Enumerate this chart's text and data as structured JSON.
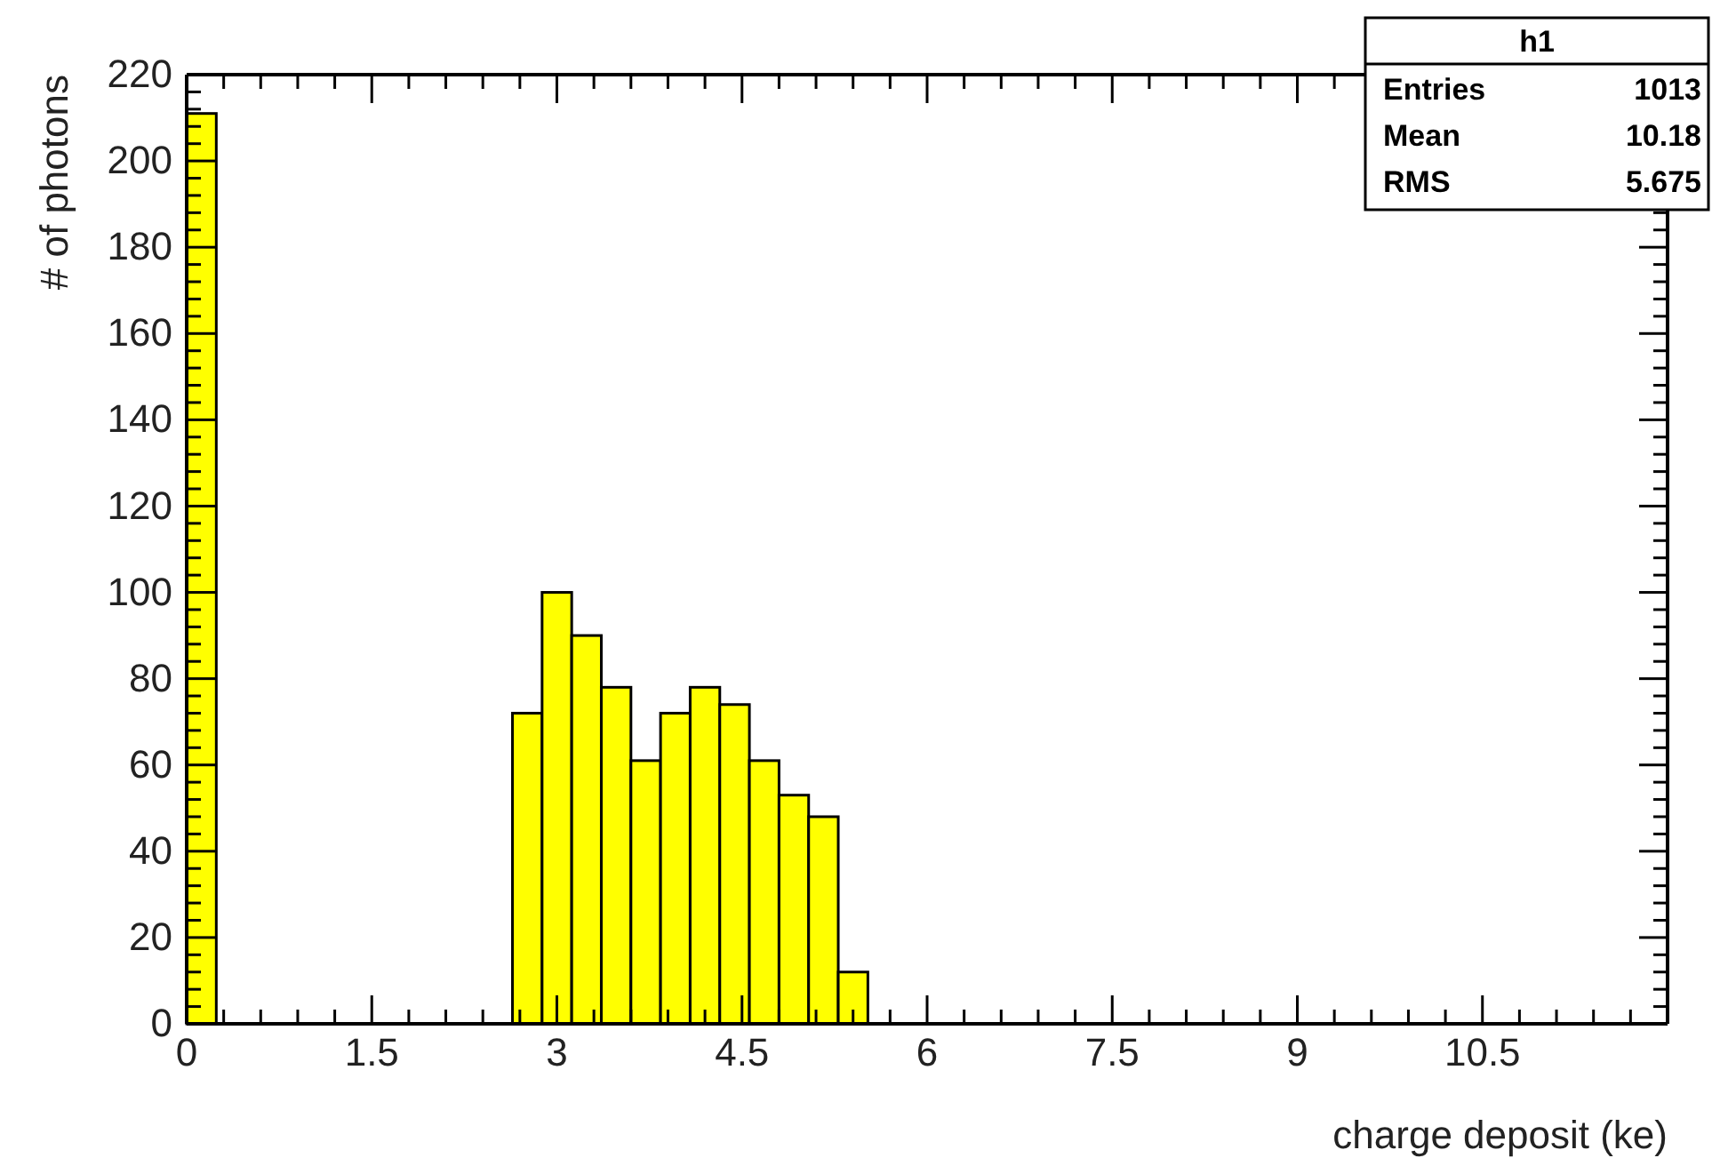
{
  "chart_data": {
    "type": "histogram",
    "xlabel": "charge deposit (ke)",
    "ylabel": "# of photons",
    "bins": [
      0,
      0.24,
      0.48,
      0.72,
      0.96,
      1.2,
      1.44,
      1.68,
      1.92,
      2.16,
      2.4,
      2.64,
      2.88,
      3.12,
      3.36,
      3.6,
      3.84,
      4.08,
      4.32,
      4.56,
      4.8,
      5.04,
      5.28,
      5.52,
      5.76,
      6,
      6.24,
      6.48,
      6.72,
      6.96,
      7.2,
      7.44,
      7.68,
      7.92,
      8.16,
      8.4,
      8.64,
      8.88,
      9.12,
      9.36,
      9.6,
      9.84,
      10.08,
      10.32,
      10.56,
      10.8,
      11.04,
      11.28,
      11.52,
      11.76,
      12
    ],
    "values": [
      211,
      0,
      0,
      0,
      0,
      0,
      0,
      0,
      0,
      0,
      0,
      72,
      100,
      90,
      78,
      61,
      72,
      78,
      74,
      61,
      53,
      48,
      12,
      0,
      0,
      0,
      0,
      0,
      0,
      0,
      0,
      0,
      0,
      0,
      0,
      0,
      0,
      0,
      0,
      0,
      0,
      0,
      0,
      0,
      0,
      0,
      0,
      0,
      0,
      0
    ],
    "color": "#ffff00",
    "xlim": [
      0,
      12
    ],
    "xticks": [
      0,
      {
        "value": 0.3,
        "label": null
      },
      {
        "value": 0.6,
        "label": null
      },
      {
        "value": 0.9,
        "label": null
      },
      {
        "value": 1.2,
        "label": null
      },
      1.5,
      {
        "value": 1.8,
        "label": null
      },
      {
        "value": 2.1,
        "label": null
      },
      {
        "value": 2.4,
        "label": null
      },
      {
        "value": 2.7,
        "label": null
      },
      3,
      {
        "value": 3.3,
        "label": null
      },
      {
        "value": 3.6,
        "label": null
      },
      {
        "value": 3.9,
        "label": null
      },
      {
        "value": 4.2,
        "label": null
      },
      4.5,
      {
        "value": 4.8,
        "label": null
      },
      {
        "value": 5.1,
        "label": null
      },
      {
        "value": 5.4,
        "label": null
      },
      {
        "value": 5.7,
        "label": null
      },
      6,
      {
        "value": 6.3,
        "label": null
      },
      {
        "value": 6.6,
        "label": null
      },
      {
        "value": 6.9,
        "label": null
      },
      {
        "value": 7.2,
        "label": null
      },
      7.5,
      {
        "value": 7.8,
        "label": null
      },
      {
        "value": 8.1,
        "label": null
      },
      {
        "value": 8.4,
        "label": null
      },
      {
        "value": 8.7,
        "label": null
      },
      9,
      {
        "value": 9.3,
        "label": null
      },
      {
        "value": 9.6,
        "label": null
      },
      {
        "value": 9.9,
        "label": null
      },
      {
        "value": 10.2,
        "label": null
      },
      10.5,
      {
        "value": 10.8,
        "label": null
      },
      {
        "value": 11.1,
        "label": null
      },
      {
        "value": 11.4,
        "label": null
      },
      {
        "value": 11.7,
        "label": null
      }
    ],
    "ylim": [
      0,
      220
    ],
    "yticks": [
      0,
      {
        "value": 4,
        "label": null
      },
      {
        "value": 8,
        "label": null
      },
      {
        "value": 12,
        "label": null
      },
      {
        "value": 16,
        "label": null
      },
      20,
      {
        "value": 24,
        "label": null
      },
      {
        "value": 28,
        "label": null
      },
      {
        "value": 32,
        "label": null
      },
      {
        "value": 36,
        "label": null
      },
      40,
      {
        "value": 44,
        "label": null
      },
      {
        "value": 48,
        "label": null
      },
      {
        "value": 52,
        "label": null
      },
      {
        "value": 56,
        "label": null
      },
      60,
      {
        "value": 64,
        "label": null
      },
      {
        "value": 68,
        "label": null
      },
      {
        "value": 72,
        "label": null
      },
      {
        "value": 76,
        "label": null
      },
      80,
      {
        "value": 84,
        "label": null
      },
      {
        "value": 88,
        "label": null
      },
      {
        "value": 92,
        "label": null
      },
      {
        "value": 96,
        "label": null
      },
      100,
      {
        "value": 104,
        "label": null
      },
      {
        "value": 108,
        "label": null
      },
      {
        "value": 112,
        "label": null
      },
      {
        "value": 116,
        "label": null
      },
      120,
      {
        "value": 124,
        "label": null
      },
      {
        "value": 128,
        "label": null
      },
      {
        "value": 132,
        "label": null
      },
      {
        "value": 136,
        "label": null
      },
      140,
      {
        "value": 144,
        "label": null
      },
      {
        "value": 148,
        "label": null
      },
      {
        "value": 152,
        "label": null
      },
      {
        "value": 156,
        "label": null
      },
      160,
      {
        "value": 164,
        "label": null
      },
      {
        "value": 168,
        "label": null
      },
      {
        "value": 172,
        "label": null
      },
      {
        "value": 176,
        "label": null
      },
      180,
      {
        "value": 184,
        "label": null
      },
      {
        "value": 188,
        "label": null
      },
      {
        "value": 192,
        "label": null
      },
      {
        "value": 196,
        "label": null
      },
      200,
      {
        "value": 204,
        "label": null
      },
      {
        "value": 208,
        "label": null
      },
      {
        "value": 212,
        "label": null
      },
      {
        "value": 216,
        "label": null
      },
      220
    ],
    "annotations": [
      "h1",
      "Entries 1013",
      "Mean 10.18",
      "RMS 5.675"
    ],
    "grid": false
  }
}
